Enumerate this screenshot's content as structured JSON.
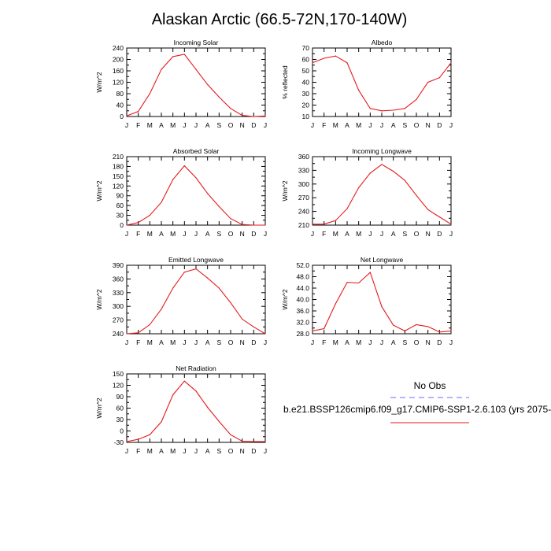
{
  "title": "Alaskan Arctic (66.5-72N,170-140W)",
  "months": [
    "J",
    "F",
    "M",
    "A",
    "M",
    "J",
    "J",
    "A",
    "S",
    "O",
    "N",
    "D",
    "J"
  ],
  "legend": {
    "heading": "No Obs",
    "model_label": "b.e21.BSSP126cmip6.f09_g17.CMIP6-SSP1-2.6.103 (yrs 2075-",
    "obs_color": "#6b6bff",
    "model_color": "#e41a1c"
  },
  "line_color": "#e41a1c",
  "chart_data": [
    {
      "type": "line",
      "title": "Incoming Solar",
      "ylabel": "W/m^2",
      "ylim": [
        0,
        240
      ],
      "yticks": [
        0,
        40,
        80,
        120,
        160,
        200,
        240
      ],
      "ytick_labels": [
        "0",
        "40",
        "80",
        "120",
        "160",
        "200",
        "240"
      ],
      "x": [
        "J",
        "F",
        "M",
        "A",
        "M",
        "J",
        "J",
        "A",
        "S",
        "O",
        "N",
        "D",
        "J"
      ],
      "values": [
        2,
        18,
        80,
        165,
        210,
        218,
        165,
        112,
        68,
        28,
        4,
        0,
        2
      ]
    },
    {
      "type": "line",
      "title": "Albedo",
      "ylabel": "% reflected",
      "ylim": [
        10,
        70
      ],
      "yticks": [
        10,
        20,
        30,
        40,
        50,
        60,
        70
      ],
      "ytick_labels": [
        "10",
        "20",
        "30",
        "40",
        "50",
        "60",
        "70"
      ],
      "x": [
        "J",
        "F",
        "M",
        "A",
        "M",
        "J",
        "J",
        "A",
        "S",
        "O",
        "N",
        "D",
        "J"
      ],
      "values": [
        57,
        61,
        63,
        57,
        33,
        17,
        15,
        15.5,
        17,
        25,
        40,
        44,
        57
      ]
    },
    {
      "type": "line",
      "title": "Absorbed Solar",
      "ylabel": "W/m^2",
      "ylim": [
        0,
        210
      ],
      "yticks": [
        0,
        30,
        60,
        90,
        120,
        150,
        180,
        210
      ],
      "ytick_labels": [
        "0",
        "30",
        "60",
        "90",
        "120",
        "150",
        "180",
        "210"
      ],
      "x": [
        "J",
        "F",
        "M",
        "A",
        "M",
        "J",
        "J",
        "A",
        "S",
        "O",
        "N",
        "D",
        "J"
      ],
      "values": [
        0,
        8,
        30,
        70,
        140,
        182,
        145,
        97,
        57,
        20,
        2,
        0,
        0
      ]
    },
    {
      "type": "line",
      "title": "Incoming Longwave",
      "ylabel": "W/m^2",
      "ylim": [
        210,
        360
      ],
      "yticks": [
        210,
        240,
        270,
        300,
        330,
        360
      ],
      "ytick_labels": [
        "210",
        "240",
        "270",
        "300",
        "330",
        "360"
      ],
      "x": [
        "J",
        "F",
        "M",
        "A",
        "M",
        "J",
        "J",
        "A",
        "S",
        "O",
        "N",
        "D",
        "J"
      ],
      "values": [
        212,
        212,
        220,
        246,
        292,
        324,
        343,
        328,
        308,
        275,
        244,
        228,
        212
      ]
    },
    {
      "type": "line",
      "title": "Emitted Longwave",
      "ylabel": "W/m^2",
      "ylim": [
        240,
        390
      ],
      "yticks": [
        240,
        270,
        300,
        330,
        360,
        390
      ],
      "ytick_labels": [
        "240",
        "270",
        "300",
        "330",
        "360",
        "390"
      ],
      "x": [
        "J",
        "F",
        "M",
        "A",
        "M",
        "J",
        "J",
        "A",
        "S",
        "O",
        "N",
        "D",
        "J"
      ],
      "values": [
        240,
        242,
        260,
        294,
        340,
        375,
        382,
        362,
        340,
        308,
        272,
        255,
        240
      ]
    },
    {
      "type": "line",
      "title": "Net Longwave",
      "ylabel": "W/m^2",
      "ylim": [
        28,
        52
      ],
      "yticks": [
        28,
        32,
        36,
        40,
        44,
        48,
        52
      ],
      "ytick_labels": [
        "28.0",
        "32.0",
        "36.0",
        "40.0",
        "44.0",
        "48.0",
        "52.0"
      ],
      "x": [
        "J",
        "F",
        "M",
        "A",
        "M",
        "J",
        "J",
        "A",
        "S",
        "O",
        "N",
        "D",
        "J"
      ],
      "values": [
        29,
        29.8,
        38.5,
        46,
        45.8,
        49.5,
        37.5,
        31,
        29,
        31.2,
        30.5,
        28.6,
        29
      ]
    },
    {
      "type": "line",
      "title": "Net Radiation",
      "ylabel": "W/m^2",
      "ylim": [
        -30,
        150
      ],
      "yticks": [
        -30,
        0,
        30,
        60,
        90,
        120,
        150
      ],
      "ytick_labels": [
        "-30",
        "0",
        "30",
        "60",
        "90",
        "120",
        "150"
      ],
      "x": [
        "J",
        "F",
        "M",
        "A",
        "M",
        "J",
        "J",
        "A",
        "S",
        "O",
        "N",
        "D",
        "J"
      ],
      "values": [
        -28,
        -22,
        -10,
        24,
        95,
        131,
        105,
        62,
        25,
        -10,
        -27,
        -28,
        -28
      ]
    }
  ]
}
